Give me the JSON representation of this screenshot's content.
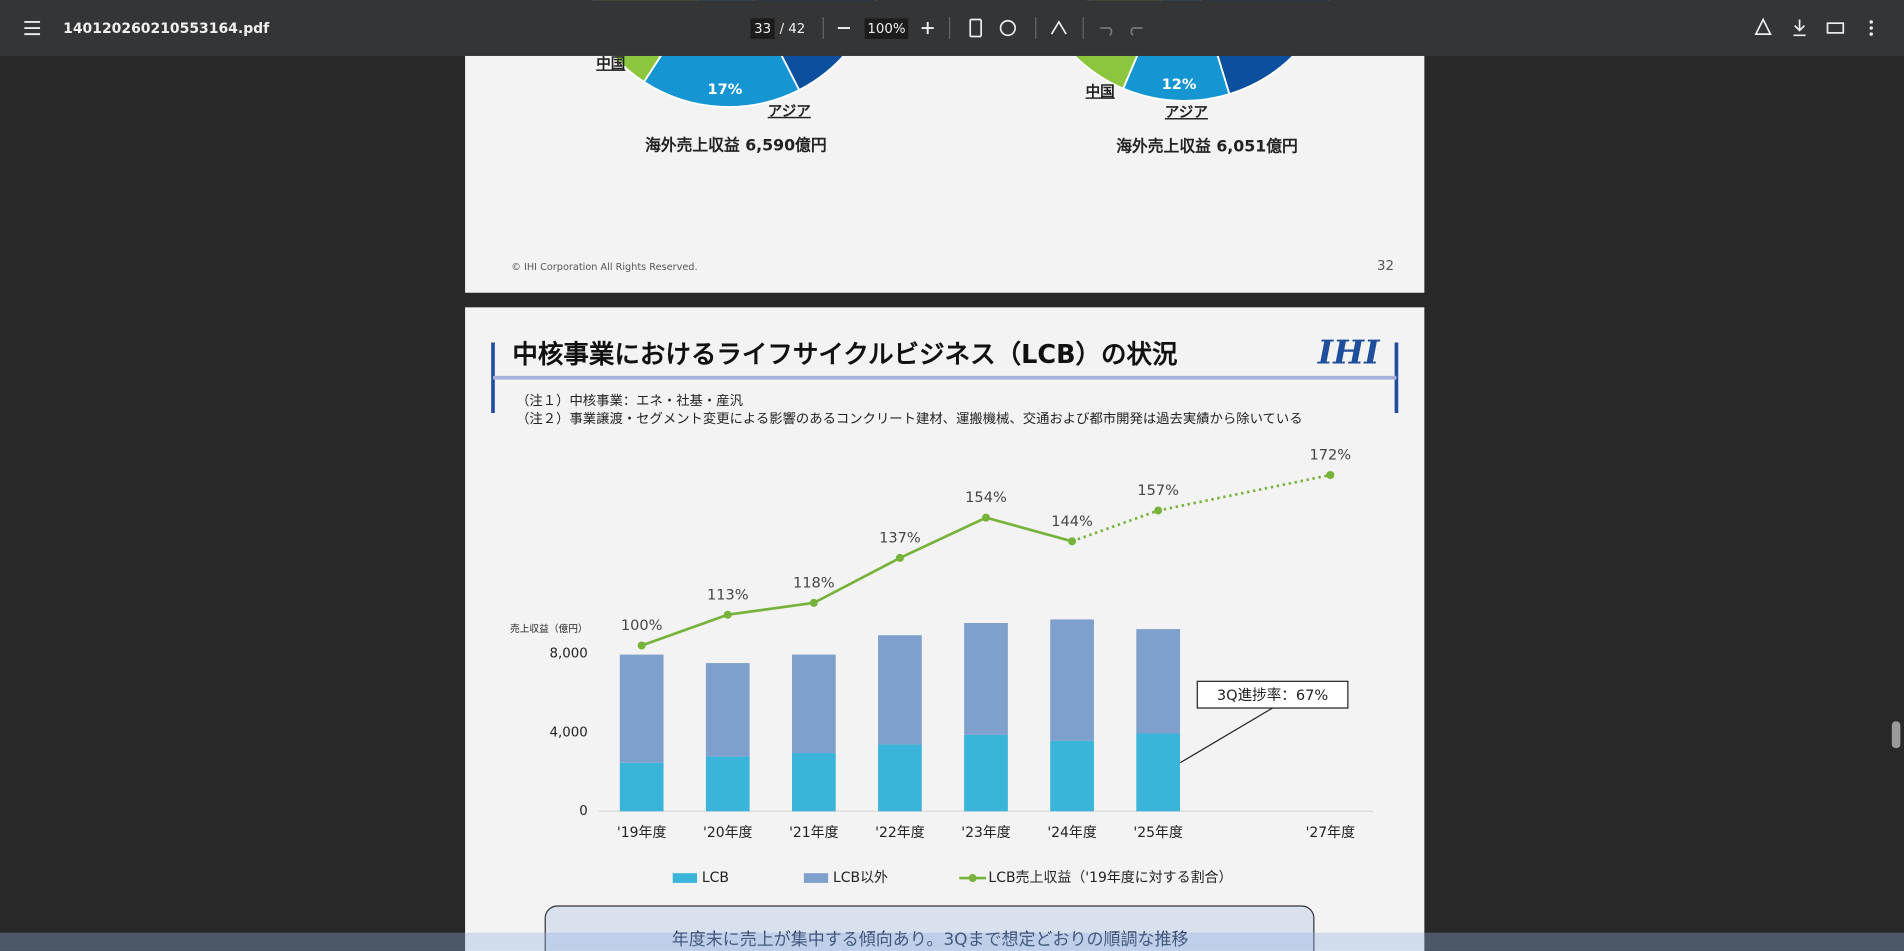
{
  "toolbar": {
    "filename": "140120260210553164.pdf",
    "page": "33",
    "page_total": "/ 42",
    "zoom": "100%"
  },
  "page32": {
    "left_china": "中国",
    "left_pct": "17%",
    "left_asia": "アジア",
    "left_total": "海外売上収益 6,590億円",
    "right_china": "中国",
    "right_pct": "12%",
    "right_asia": "アジア",
    "right_total": "海外売上収益 6,051億円",
    "copyright": "© IHI Corporation All Rights Reserved.",
    "page_number": "32"
  },
  "page33": {
    "title": "中核事業におけるライフサイクルビジネス（LCB）の状況",
    "logo": "IHI",
    "note1": "（注１）中核事業：エネ・社基・産汎",
    "note2": "（注２）事業譲渡・セグメント変更による影響のあるコンクリート建材、運搬機械、交通および都市開発は過去実績から除いている",
    "callout": "年度末に売上が集中する傾向あり。3Qまで想定どおりの順調な推移"
  },
  "chart_data": {
    "type": "bar",
    "y_label": "売上収益（億円）",
    "annotation": "3Q進捗率：67%",
    "x": [
      2019,
      2020,
      2021,
      2022,
      2023,
      2024,
      2025,
      2027
    ],
    "xlim": [
      2018.5,
      2027.5
    ],
    "xticks": [
      {
        "value": 2019,
        "label": "'19年度"
      },
      {
        "value": 2020,
        "label": "'20年度"
      },
      {
        "value": 2021,
        "label": "'21年度"
      },
      {
        "value": 2022,
        "label": "'22年度"
      },
      {
        "value": 2023,
        "label": "'23年度"
      },
      {
        "value": 2024,
        "label": "'24年度"
      },
      {
        "value": 2025,
        "label": "'25年度"
      },
      {
        "value": 2027,
        "label": "'27年度"
      }
    ],
    "ylim": [
      0,
      18000
    ],
    "yticks": [
      0,
      {
        "value": 4000,
        "label": "4,000"
      },
      {
        "value": 8000,
        "label": "8,000"
      }
    ],
    "y2lim": [
      30,
      180
    ],
    "grid": false,
    "series": [
      {
        "name": "LCB",
        "color": "#3bb4da",
        "values": [
          2460,
          2770,
          2950,
          3380,
          3880,
          3570,
          3940,
          null
        ]
      },
      {
        "name": "LCB以外",
        "color": "#7f9fcc",
        "values": [
          5480,
          4740,
          4990,
          5540,
          5660,
          6150,
          5290,
          null
        ]
      },
      {
        "name": "LCB売上収益（'19年度に対する割合）",
        "type": "line",
        "axis": "y2",
        "color": "#77b23a",
        "values": [
          100,
          113,
          118,
          137,
          154,
          144,
          157,
          172
        ],
        "value_labels": [
          "100%",
          "113%",
          "118%",
          "137%",
          "154%",
          "144%",
          "157%",
          "172%"
        ]
      }
    ]
  }
}
